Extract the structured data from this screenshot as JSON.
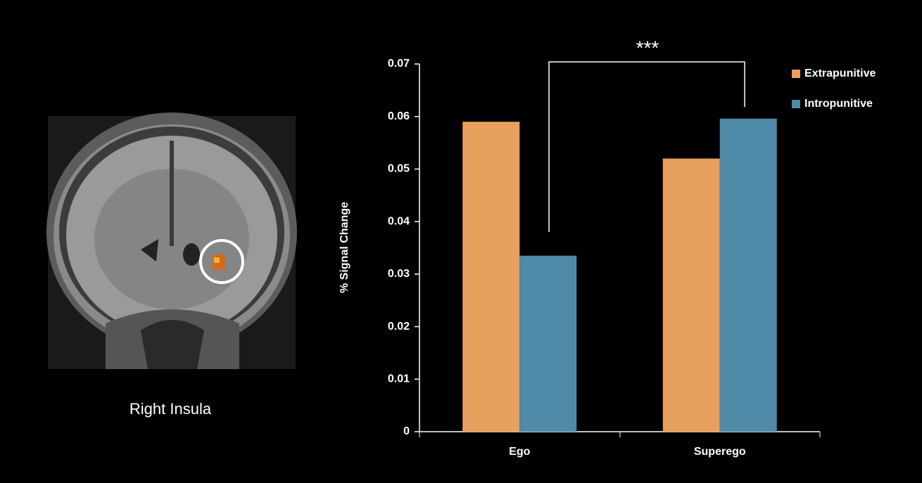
{
  "caption": "Right Insula",
  "chart_data": {
    "type": "bar",
    "y_label": "% Signal Change",
    "annotation": "***",
    "categories": [
      "Ego",
      "Superego"
    ],
    "series": [
      {
        "name": "Extrapunitive",
        "color": "#e8a05e",
        "values": [
          0.059,
          0.052
        ]
      },
      {
        "name": "Intropunitive",
        "color": "#4f8ba8",
        "values": [
          0.0335,
          0.0596
        ]
      }
    ],
    "ylim": [
      0,
      0.07
    ],
    "yticks": [
      0,
      0.01,
      0.02,
      0.03,
      0.04,
      0.05,
      0.06,
      0.07
    ],
    "legend": "top-right"
  }
}
